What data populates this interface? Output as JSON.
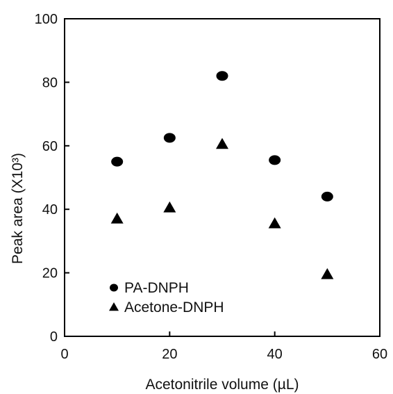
{
  "chart_data": {
    "type": "scatter",
    "title": "",
    "xlabel": "Acetonitrile volume (µL)",
    "ylabel": "Peak area (X10³)",
    "xlim": [
      0,
      60
    ],
    "ylim": [
      0,
      100
    ],
    "xticks": [
      0,
      20,
      40,
      60
    ],
    "yticks": [
      0,
      20,
      40,
      60,
      80,
      100
    ],
    "grid": false,
    "legend_position": "bottom-left",
    "series": [
      {
        "name": "PA-DNPH",
        "marker": "circle",
        "color": "#000000",
        "x": [
          10,
          20,
          30,
          40,
          50
        ],
        "y": [
          55,
          62.5,
          82,
          55.5,
          44
        ]
      },
      {
        "name": "Acetone-DNPH",
        "marker": "triangle",
        "color": "#000000",
        "x": [
          10,
          20,
          30,
          40,
          50
        ],
        "y": [
          37,
          40.5,
          60.5,
          35.5,
          19.5
        ]
      }
    ]
  }
}
